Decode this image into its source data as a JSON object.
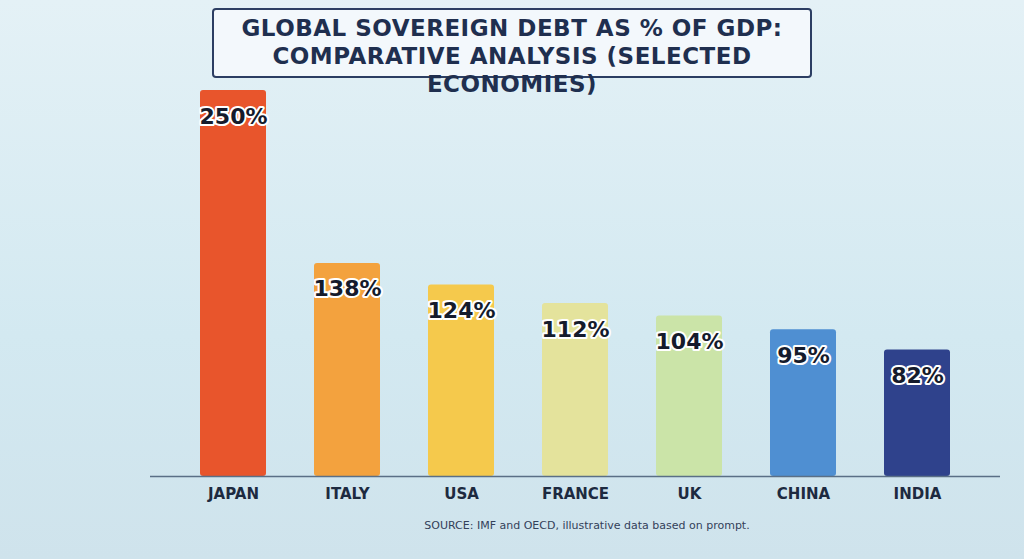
{
  "chart_data": {
    "type": "bar",
    "title": "GLOBAL SOVEREIGN DEBT AS % OF GDP: COMPARATIVE ANALYSIS (SELECTED ECONOMIES)",
    "categories": [
      "JAPAN",
      "ITALY",
      "USA",
      "FRANCE",
      "UK",
      "CHINA",
      "INDIA"
    ],
    "values": [
      250,
      138,
      124,
      112,
      104,
      95,
      82
    ],
    "value_labels": [
      "250%",
      "138%",
      "124%",
      "112%",
      "104%",
      "95%",
      "82%"
    ],
    "colors": [
      "#e8552c",
      "#f3a23e",
      "#f5c94c",
      "#e4e39c",
      "#cbe4a8",
      "#4f8fd2",
      "#2f428c"
    ],
    "ylim": [
      0,
      250
    ],
    "grid": false,
    "data_labels": true,
    "tick_labels": "x",
    "source": "SOURCE: IMF and OECD, illustrative data based on prompt."
  }
}
